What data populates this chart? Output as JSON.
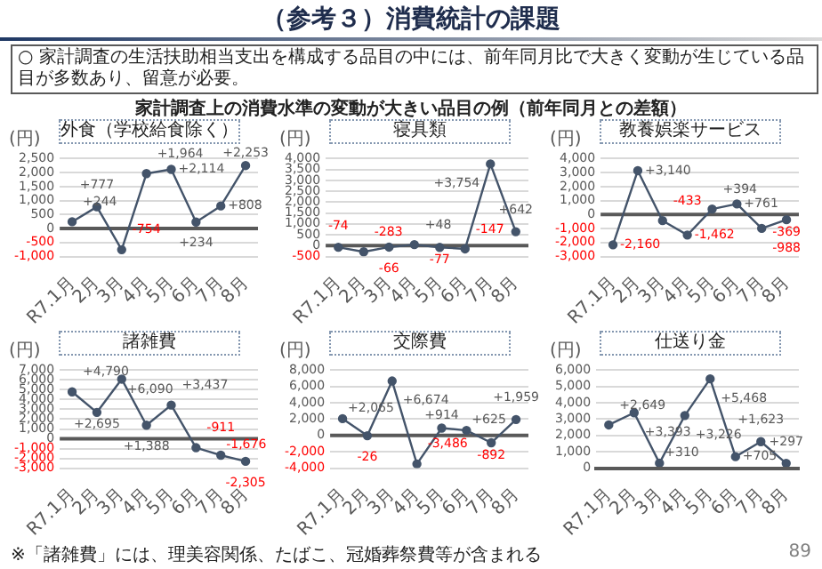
{
  "chart_data": [
    {
      "type": "other",
      "title": "（参考３）消費統計の課題",
      "annotations": [
        "○ 家計調査の生活扶助相当支出を構成する品目の中には、前年同月比で大きく変動が生じている品目が多数あり、留意が必要。",
        "家計調査上の消費水準の変動が大きい品目の例（前年同月との差額）",
        "※「諸雑費」には、理美容関係、たばこ、冠婚葬祭費等が含まれる",
        "89"
      ]
    },
    {
      "type": "line",
      "title": "外食（学校給食除く）",
      "ylabel": "(円)",
      "categories": [
        "R7.1月",
        "2月",
        "3月",
        "4月",
        "5月",
        "6月",
        "7月",
        "8月"
      ],
      "series": [
        {
          "color": "#44546a",
          "values": [
            244,
            777,
            -754,
            1964,
            2114,
            234,
            808,
            2253
          ],
          "value_labels": [
            "+244",
            "+777",
            "-754",
            "+1,964",
            "+2,114",
            "+234",
            "+808",
            "+2,253"
          ]
        }
      ],
      "ylim": [
        -1000,
        2500
      ],
      "yticks": [
        {
          "value": -1000,
          "label": "-1,000"
        },
        -500,
        0,
        500,
        {
          "value": 1000,
          "label": "1,000"
        },
        {
          "value": 1500,
          "label": "1,500"
        },
        {
          "value": 2000,
          "label": "2,000"
        },
        {
          "value": 2500,
          "label": "2,500"
        }
      ],
      "grid": "y",
      "marker": "circle",
      "ref_lines": [
        {
          "axis": "y",
          "value": 0,
          "color": "#595959"
        }
      ]
    },
    {
      "type": "line",
      "title": "寝具類",
      "ylabel": "(円)",
      "categories": [
        "R7.1月",
        "2月",
        "3月",
        "4月",
        "5月",
        "6月",
        "7月",
        "8月"
      ],
      "series": [
        {
          "color": "#44546a",
          "values": [
            -74,
            -283,
            -66,
            48,
            -77,
            -147,
            3754,
            642
          ],
          "value_labels": [
            "-74",
            "-283",
            "-66",
            "+48",
            "-77",
            "-147",
            "+3,754",
            "+642"
          ]
        }
      ],
      "ylim": [
        -500,
        4000
      ],
      "yticks": [
        -500,
        0,
        500,
        {
          "value": 1000,
          "label": "1,000"
        },
        {
          "value": 1500,
          "label": "1,500"
        },
        {
          "value": 2000,
          "label": "2,000"
        },
        {
          "value": 2500,
          "label": "2,500"
        },
        {
          "value": 3000,
          "label": "3,000"
        },
        {
          "value": 3500,
          "label": "3,500"
        },
        {
          "value": 4000,
          "label": "4,000"
        }
      ],
      "grid": "y",
      "marker": "circle",
      "ref_lines": [
        {
          "axis": "y",
          "value": 0,
          "color": "#595959"
        }
      ]
    },
    {
      "type": "line",
      "title": "教養娯楽サービス",
      "ylabel": "(円)",
      "categories": [
        "R7.1月",
        "2月",
        "3月",
        "4月",
        "5月",
        "6月",
        "7月",
        "8月"
      ],
      "series": [
        {
          "color": "#44546a",
          "values": [
            -2160,
            3140,
            -433,
            -1462,
            394,
            761,
            -988,
            -369
          ],
          "value_labels": [
            "-2,160",
            "+3,140",
            "-433",
            "-1,462",
            "+394",
            "+761",
            "-988",
            "-369"
          ]
        }
      ],
      "ylim": [
        -3000,
        4000
      ],
      "yticks": [
        {
          "value": -3000,
          "label": "-3,000"
        },
        {
          "value": -2000,
          "label": "-2,000"
        },
        {
          "value": -1000,
          "label": "-1,000"
        },
        0,
        {
          "value": 1000,
          "label": "1,000"
        },
        {
          "value": 2000,
          "label": "2,000"
        },
        {
          "value": 3000,
          "label": "3,000"
        },
        {
          "value": 4000,
          "label": "4,000"
        }
      ],
      "grid": "y",
      "marker": "circle",
      "ref_lines": [
        {
          "axis": "y",
          "value": 0,
          "color": "#595959"
        }
      ]
    },
    {
      "type": "line",
      "title": "諸雑費",
      "ylabel": "(円)",
      "categories": [
        "R7.1月",
        "2月",
        "3月",
        "4月",
        "5月",
        "6月",
        "7月",
        "8月"
      ],
      "series": [
        {
          "color": "#44546a",
          "values": [
            4790,
            2695,
            6090,
            1388,
            3437,
            -911,
            -1676,
            -2305
          ],
          "value_labels": [
            "+4,790",
            "+2,695",
            "+6,090",
            "+1,388",
            "+3,437",
            "-911",
            "-1,676",
            "-2,305"
          ]
        }
      ],
      "ylim": [
        -3000,
        7000
      ],
      "yticks": [
        {
          "value": -3000,
          "label": "-3,000"
        },
        {
          "value": -2000,
          "label": "-2,000"
        },
        {
          "value": -1000,
          "label": "-1,000"
        },
        0,
        {
          "value": 1000,
          "label": "1,000"
        },
        {
          "value": 2000,
          "label": "2,000"
        },
        {
          "value": 3000,
          "label": "3,000"
        },
        {
          "value": 4000,
          "label": "4,000"
        },
        {
          "value": 5000,
          "label": "5,000"
        },
        {
          "value": 6000,
          "label": "6,000"
        },
        {
          "value": 7000,
          "label": "7,000"
        }
      ],
      "grid": "y",
      "marker": "circle",
      "ref_lines": [
        {
          "axis": "y",
          "value": 0,
          "color": "#595959"
        }
      ]
    },
    {
      "type": "line",
      "title": "交際費",
      "ylabel": "(円)",
      "categories": [
        "R7.1月",
        "2月",
        "3月",
        "4月",
        "5月",
        "6月",
        "7月",
        "8月"
      ],
      "series": [
        {
          "color": "#44546a",
          "values": [
            2065,
            -26,
            6674,
            -3486,
            914,
            625,
            -892,
            1959
          ],
          "value_labels": [
            "+2,065",
            "-26",
            "+6,674",
            "-3,486",
            "+914",
            "+625",
            "-892",
            "+1,959"
          ]
        }
      ],
      "ylim": [
        -4000,
        8000
      ],
      "yticks": [
        {
          "value": -4000,
          "label": "-4,000"
        },
        {
          "value": -2000,
          "label": "-2,000"
        },
        0,
        {
          "value": 2000,
          "label": "2,000"
        },
        {
          "value": 4000,
          "label": "4,000"
        },
        {
          "value": 6000,
          "label": "6,000"
        },
        {
          "value": 8000,
          "label": "8,000"
        }
      ],
      "grid": "y",
      "marker": "circle",
      "ref_lines": [
        {
          "axis": "y",
          "value": 0,
          "color": "#595959"
        }
      ]
    },
    {
      "type": "line",
      "title": "仕送り金",
      "ylabel": "(円)",
      "categories": [
        "R7.1月",
        "2月",
        "3月",
        "4月",
        "5月",
        "6月",
        "7月",
        "8月"
      ],
      "series": [
        {
          "color": "#44546a",
          "values": [
            2649,
            3393,
            310,
            3226,
            5468,
            705,
            1623,
            297
          ],
          "value_labels": [
            "+2,649",
            "+3,393",
            "+310",
            "+3,226",
            "+5,468",
            "+705",
            "+1,623",
            "+297"
          ]
        }
      ],
      "ylim": [
        0,
        6000
      ],
      "yticks": [
        0,
        {
          "value": 1000,
          "label": "1,000"
        },
        {
          "value": 2000,
          "label": "2,000"
        },
        {
          "value": 3000,
          "label": "3,000"
        },
        {
          "value": 4000,
          "label": "4,000"
        },
        {
          "value": 5000,
          "label": "5,000"
        },
        {
          "value": 6000,
          "label": "6,000"
        }
      ],
      "grid": "y",
      "marker": "circle"
    }
  ]
}
